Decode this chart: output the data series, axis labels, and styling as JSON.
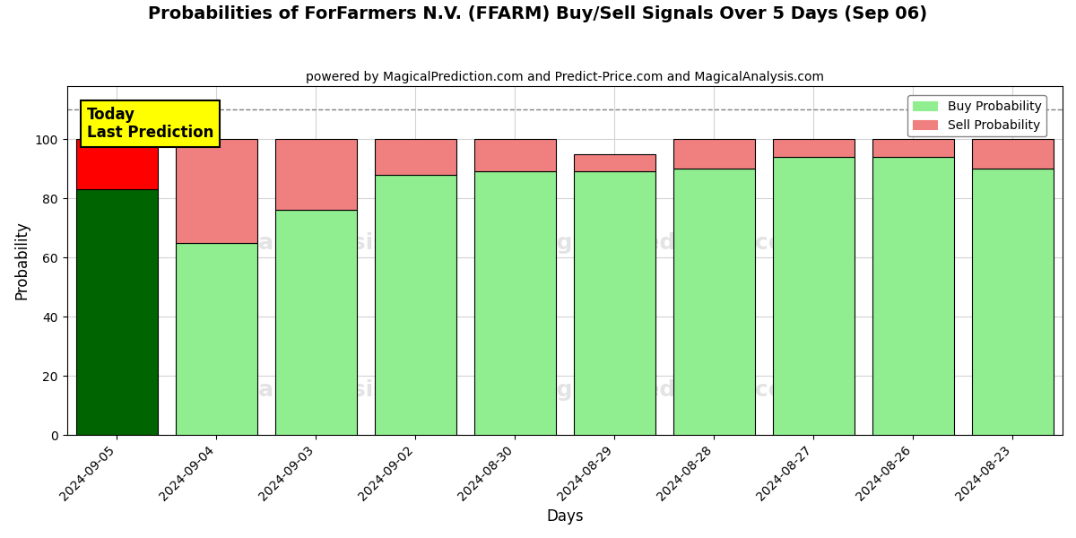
{
  "title": "Probabilities of ForFarmers N.V. (FFARM) Buy/Sell Signals Over 5 Days (Sep 06)",
  "subtitle": "powered by MagicalPrediction.com and Predict-Price.com and MagicalAnalysis.com",
  "xlabel": "Days",
  "ylabel": "Probability",
  "categories": [
    "2024-09-05",
    "2024-09-04",
    "2024-09-03",
    "2024-09-02",
    "2024-08-30",
    "2024-08-29",
    "2024-08-28",
    "2024-08-27",
    "2024-08-26",
    "2024-08-23"
  ],
  "buy_values": [
    83,
    65,
    76,
    88,
    89,
    89,
    90,
    94,
    94,
    90
  ],
  "sell_values": [
    17,
    35,
    24,
    12,
    11,
    6,
    10,
    6,
    6,
    10
  ],
  "today_buy_color": "#006400",
  "today_sell_color": "#FF0000",
  "buy_color_light": "#90EE90",
  "sell_color_light": "#F08080",
  "today_annotation": "Today\nLast Prediction",
  "dashed_line_y": 110,
  "ylim": [
    0,
    118
  ],
  "yticks": [
    0,
    20,
    40,
    60,
    80,
    100
  ],
  "background_color": "#ffffff",
  "legend_buy": "Buy Probability",
  "legend_sell": "Sell Probability"
}
